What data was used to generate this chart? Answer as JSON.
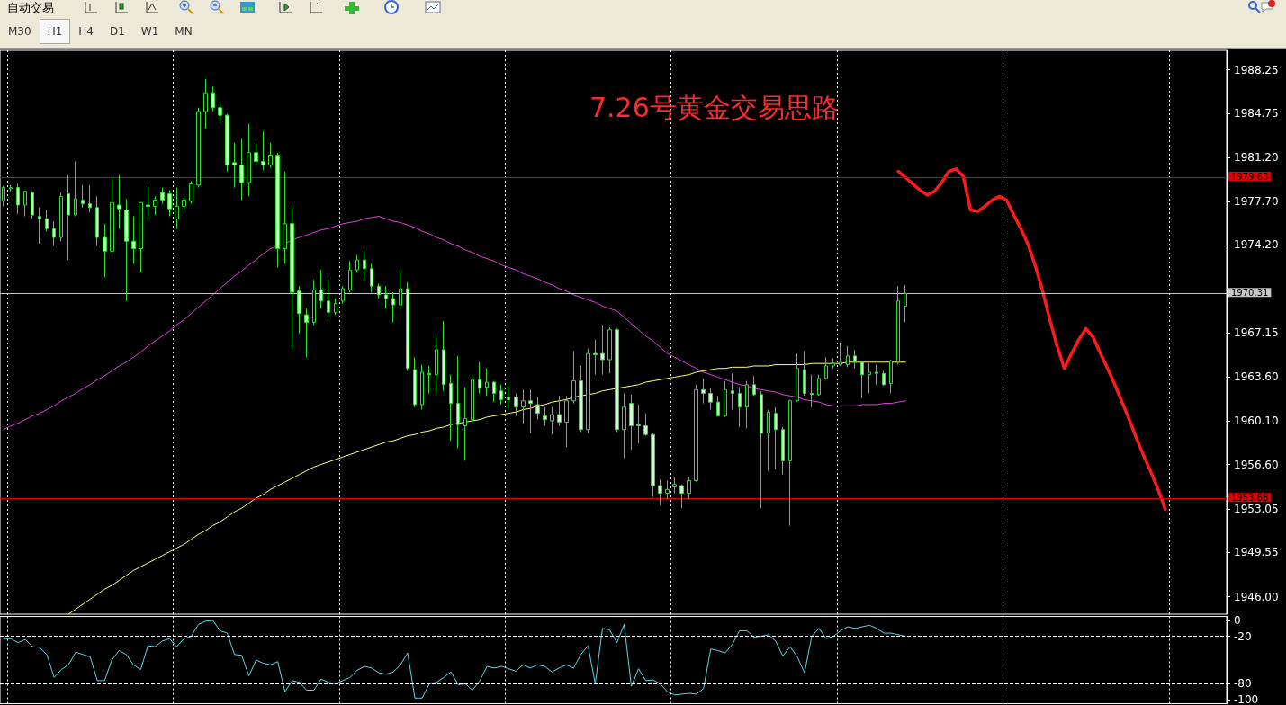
{
  "chart_data": [
    {
      "type": "candlestick",
      "title": "7.26号黄金交易思路",
      "tick_labels": "y",
      "annotations": [
        "自动交易",
        "M30",
        "H1",
        "H4",
        "D1",
        "W1",
        "MN"
      ],
      "categories": [
        null,
        null,
        null,
        null,
        null,
        null,
        null,
        null,
        null,
        null,
        null,
        null,
        null,
        null,
        null,
        null,
        null,
        null,
        null,
        null,
        null,
        null,
        null,
        null,
        null,
        null,
        null,
        null,
        null,
        null,
        null,
        null,
        null,
        null,
        null,
        null,
        null,
        null,
        null,
        null,
        null,
        null,
        null,
        null,
        null,
        null,
        null,
        null,
        null,
        null,
        null,
        null,
        null,
        null,
        null,
        null,
        null,
        null,
        null,
        null,
        null,
        null,
        null,
        null,
        null,
        null,
        null,
        null,
        null,
        null,
        null,
        null,
        null,
        null,
        null,
        null,
        null,
        null,
        null,
        null,
        null,
        null,
        null,
        null,
        null,
        null,
        null,
        null,
        null,
        null,
        null,
        null,
        null,
        null,
        null,
        null,
        null,
        null,
        null,
        null,
        null,
        null,
        null,
        null,
        null,
        null,
        null,
        null,
        null,
        null,
        null,
        null,
        null,
        null,
        null,
        null,
        null,
        null,
        null,
        null,
        null,
        null,
        null,
        null,
        null,
        null,
        null,
        null,
        null,
        null,
        null,
        null,
        null,
        null,
        null,
        null,
        null,
        null,
        null,
        null,
        null,
        null,
        null,
        null,
        null,
        null,
        null,
        null,
        null,
        null,
        null,
        null,
        null,
        null,
        null,
        null,
        null,
        null,
        null,
        null,
        null,
        null,
        null,
        null,
        null,
        null,
        null,
        null,
        null,
        null
      ],
      "ylim": [
        1944.6,
        1989.8
      ],
      "yticks": [
        {
          "value": 1946.0,
          "label": "1946.00"
        },
        {
          "value": 1949.55,
          "label": "1949.55"
        },
        {
          "value": 1953.05,
          "label": "1953.05"
        },
        {
          "value": 1956.6,
          "label": "1956.60"
        },
        {
          "value": 1960.1,
          "label": "1960.10"
        },
        {
          "value": 1963.6,
          "label": "1963.60"
        },
        {
          "value": 1967.15,
          "label": "1967.15"
        },
        {
          "value": 1970.65,
          "label": null
        },
        {
          "value": 1974.2,
          "label": "1974.20"
        },
        {
          "value": 1977.7,
          "label": "1977.70"
        },
        {
          "value": 1981.2,
          "label": "1981.20"
        },
        {
          "value": 1984.75,
          "label": "1984.75"
        },
        {
          "value": 1988.25,
          "label": "1988.25"
        }
      ],
      "ref_lines": [
        {
          "axis": "y",
          "value": 1979.63,
          "label": "1979.63",
          "color": "#e00000"
        },
        {
          "axis": "y",
          "value": 1953.88,
          "label": "1953.88",
          "color": "#e00000"
        },
        {
          "axis": "y",
          "value": 1970.31,
          "label": "1970.31",
          "color": "#c8c8c8"
        }
      ],
      "series": [
        {
          "type": "line",
          "color": "#e040e0",
          "values": [
            1959.4,
            1959.7,
            1959.9,
            1960.2,
            1960.5,
            1960.7,
            1961.0,
            1961.3,
            1961.7,
            1962.0,
            1962.3,
            1962.7,
            1963.0,
            1963.4,
            1963.7,
            1964.1,
            1964.5,
            1964.8,
            1965.2,
            1965.6,
            1966.1,
            1966.5,
            1966.9,
            1967.3,
            1967.8,
            1968.2,
            1968.7,
            1969.2,
            1969.7,
            1970.2,
            1970.7,
            1971.2,
            1971.7,
            1972.1,
            1972.6,
            1973.0,
            1973.5,
            1973.9,
            1974.1,
            1974.3,
            1974.6,
            1974.8,
            1975.0,
            1975.2,
            1975.4,
            1975.5,
            1975.7,
            1975.9,
            1976.0,
            1976.1,
            1976.3,
            1976.4,
            1976.5,
            1976.3,
            1976.1,
            1976.0,
            1975.8,
            1975.6,
            1975.3,
            1975.1,
            1974.8,
            1974.6,
            1974.3,
            1974.1,
            1973.8,
            1973.6,
            1973.3,
            1973.1,
            1972.9,
            1972.6,
            1972.4,
            1972.2,
            1971.9,
            1971.7,
            1971.5,
            1971.2,
            1971.0,
            1970.7,
            1970.5,
            1970.2,
            1970.0,
            1969.8,
            1969.6,
            1969.3,
            1969.1,
            1968.9,
            1968.4,
            1967.9,
            1967.4,
            1966.9,
            1966.5,
            1966.0,
            1965.5,
            1965.2,
            1964.9,
            1964.6,
            1964.3,
            1964.0,
            1963.8,
            1963.6,
            1963.4,
            1963.2,
            1963.0,
            1962.9,
            1962.7,
            1962.6,
            1962.5,
            1962.4,
            1962.2,
            1962.1,
            1962.0,
            1961.8,
            1961.7,
            1961.6,
            1961.4,
            1961.3,
            1961.3,
            1961.3,
            1961.3,
            1961.4,
            1961.4,
            1961.4,
            1961.5,
            1961.5,
            1961.6,
            1961.7,
            null,
            null,
            null,
            null,
            null,
            null,
            null,
            null,
            null,
            null,
            null,
            null,
            null,
            null,
            null,
            null,
            null,
            null,
            null,
            null,
            null,
            null,
            null,
            null,
            null,
            null,
            null,
            null,
            null,
            null,
            null,
            null,
            null,
            null,
            null,
            null,
            null,
            null,
            null,
            null,
            null,
            null,
            null,
            null
          ]
        },
        {
          "type": "line",
          "color": "#ffff80",
          "values": [
            null,
            null,
            null,
            null,
            null,
            null,
            null,
            null,
            null,
            1944.6,
            1945.0,
            1945.4,
            1945.8,
            1946.2,
            1946.6,
            1946.9,
            1947.3,
            1947.7,
            1948.1,
            1948.4,
            1948.7,
            1949.0,
            1949.3,
            1949.6,
            1949.9,
            1950.2,
            1950.6,
            1951.0,
            1951.3,
            1951.7,
            1952.0,
            1952.4,
            1952.8,
            1953.1,
            1953.5,
            1953.9,
            1954.2,
            1954.6,
            1954.9,
            1955.2,
            1955.5,
            1955.8,
            1956.1,
            1956.4,
            1956.6,
            1956.8,
            1957.0,
            1957.2,
            1957.4,
            1957.6,
            1957.8,
            1958.0,
            1958.2,
            1958.4,
            1958.5,
            1958.7,
            1958.9,
            1959.0,
            1959.2,
            1959.3,
            1959.5,
            1959.6,
            1959.8,
            1959.9,
            1960.0,
            1960.1,
            1960.2,
            1960.4,
            1960.5,
            1960.6,
            1960.7,
            1960.8,
            1961.0,
            1961.1,
            1961.3,
            1961.4,
            1961.6,
            1961.7,
            1961.8,
            1962.0,
            1962.1,
            1962.2,
            1962.3,
            1962.5,
            1962.6,
            1962.7,
            1962.8,
            1962.9,
            1963.0,
            1963.2,
            1963.3,
            1963.4,
            1963.5,
            1963.6,
            1963.7,
            1963.8,
            1964.0,
            1964.1,
            1964.2,
            1964.3,
            1964.3,
            1964.4,
            1964.4,
            1964.4,
            1964.5,
            1964.5,
            1964.5,
            1964.6,
            1964.6,
            1964.6,
            1964.6,
            1964.6,
            1964.7,
            1964.7,
            1964.7,
            1964.7,
            1964.7,
            1964.8,
            1964.8,
            1964.8,
            1964.8,
            1964.8,
            1964.8,
            1964.8,
            1964.8,
            1964.8,
            null,
            null,
            null,
            null,
            null,
            null,
            null,
            null,
            null,
            null,
            null,
            null,
            null,
            null,
            null,
            null,
            null,
            null,
            null,
            null,
            null,
            null,
            null,
            null,
            null,
            null,
            null,
            null,
            null,
            null,
            null,
            null,
            null,
            null,
            null,
            null,
            null,
            null,
            null,
            null,
            null,
            null,
            null,
            null
          ]
        },
        {
          "type": "line",
          "color": "#ff1a1a",
          "values": [
            null,
            null,
            null,
            null,
            null,
            null,
            null,
            null,
            null,
            null,
            null,
            null,
            null,
            null,
            null,
            null,
            null,
            null,
            null,
            null,
            null,
            null,
            null,
            null,
            null,
            null,
            null,
            null,
            null,
            null,
            null,
            null,
            null,
            null,
            null,
            null,
            null,
            null,
            null,
            null,
            null,
            null,
            null,
            null,
            null,
            null,
            null,
            null,
            null,
            null,
            null,
            null,
            null,
            null,
            null,
            null,
            null,
            null,
            null,
            null,
            null,
            null,
            null,
            null,
            null,
            null,
            null,
            null,
            null,
            null,
            null,
            null,
            null,
            null,
            null,
            null,
            null,
            null,
            null,
            null,
            null,
            null,
            null,
            null,
            null,
            null,
            null,
            null,
            null,
            null,
            null,
            null,
            null,
            null,
            null,
            null,
            null,
            null,
            null,
            null,
            null,
            null,
            null,
            null,
            null,
            null,
            null,
            null,
            null,
            null,
            null,
            null,
            null,
            null,
            null,
            null,
            null,
            null,
            null,
            null,
            null,
            null,
            null,
            null,
            1980.1,
            1979.6,
            1979.1,
            1978.6,
            1978.2,
            1978.5,
            1979.2,
            1980.1,
            1980.3,
            1979.7,
            1977.0,
            1976.9,
            1977.3,
            1977.8,
            1978.1,
            1977.8,
            1976.6,
            1975.5,
            1974.2,
            1972.5,
            1970.5,
            1968.2,
            1966.1,
            1964.3,
            1965.5,
            1966.6,
            1967.5,
            1966.8,
            1965.5,
            1964.3,
            1963.0,
            1961.6,
            1960.2,
            1958.7,
            1957.3,
            1956.0,
            1954.6,
            1953.0,
            null,
            null,
            null,
            null,
            null,
            null,
            null,
            null
          ]
        },
        {
          "color": "#33dd33",
          "ohlc": [
            [
              1977.7,
              1978.9,
              1977.3,
              1978.8
            ],
            [
              1978.7,
              1979.0,
              1978.5,
              1978.8
            ],
            [
              1978.8,
              1979.1,
              1976.7,
              1977.4
            ],
            [
              1977.4,
              1978.5,
              1976.5,
              1978.5
            ],
            [
              1978.4,
              1978.5,
              1976.3,
              1976.6
            ],
            [
              1976.5,
              1977.2,
              1974.3,
              1976.3
            ],
            [
              1976.3,
              1977.0,
              1975.3,
              1975.5
            ],
            [
              1975.5,
              1976.1,
              1974.1,
              1974.8
            ],
            [
              1974.8,
              1978.4,
              1974.5,
              1978.1
            ],
            [
              1978.3,
              1979.8,
              1973.0,
              1976.6
            ],
            [
              1976.6,
              1980.9,
              1976.5,
              1977.9
            ],
            [
              1977.8,
              1979.0,
              1977.2,
              1977.5
            ],
            [
              1977.5,
              1979.0,
              1976.8,
              1977.2
            ],
            [
              1977.2,
              1978.1,
              1974.1,
              1974.8
            ],
            [
              1974.8,
              1975.9,
              1971.6,
              1973.7
            ],
            [
              1973.7,
              1979.6,
              1973.6,
              1977.6
            ],
            [
              1977.4,
              1979.8,
              1975.5,
              1977.1
            ],
            [
              1977.0,
              1977.9,
              1969.7,
              1974.5
            ],
            [
              1974.5,
              1976.5,
              1972.7,
              1973.9
            ],
            [
              1973.9,
              1977.6,
              1972.0,
              1977.6
            ],
            [
              1977.4,
              1978.9,
              1976.3,
              1977.3
            ],
            [
              1977.3,
              1978.1,
              1976.6,
              1977.8
            ],
            [
              1978.4,
              1978.8,
              1977.5,
              1977.8
            ],
            [
              1978.3,
              1978.6,
              1976.5,
              1977.1
            ],
            [
              1976.3,
              1978.8,
              1975.5,
              1977.3
            ],
            [
              1977.3,
              1978.1,
              1977.0,
              1977.8
            ],
            [
              1977.7,
              1979.3,
              1977.5,
              1979.1
            ],
            [
              1979.0,
              1985.2,
              1978.8,
              1984.9
            ],
            [
              1984.9,
              1987.5,
              1983.5,
              1986.4
            ],
            [
              1986.4,
              1986.9,
              1984.9,
              1985.2
            ],
            [
              1985.2,
              1985.5,
              1984.0,
              1984.6
            ],
            [
              1984.6,
              1984.7,
              1980.1,
              1980.6
            ],
            [
              1980.8,
              1982.4,
              1978.8,
              1980.6
            ],
            [
              1980.6,
              1982.7,
              1977.8,
              1979.2
            ],
            [
              1979.2,
              1983.9,
              1978.1,
              1981.6
            ],
            [
              1981.6,
              1982.4,
              1980.6,
              1980.9
            ],
            [
              1980.9,
              1983.3,
              1980.2,
              1980.6
            ],
            [
              1980.6,
              1982.4,
              1980.4,
              1981.4
            ],
            [
              1981.4,
              1981.6,
              1972.4,
              1973.9
            ],
            [
              1973.9,
              1980.1,
              1972.7,
              1975.9
            ],
            [
              1975.9,
              1977.4,
              1965.8,
              1970.4
            ],
            [
              1970.5,
              1970.9,
              1967.1,
              1968.7
            ],
            [
              1968.6,
              1969.1,
              1965.2,
              1968.0
            ],
            [
              1968.0,
              1971.4,
              1967.8,
              1970.6
            ],
            [
              1970.6,
              1972.2,
              1969.1,
              1969.7
            ],
            [
              1969.7,
              1971.4,
              1968.4,
              1968.8
            ],
            [
              1968.8,
              1969.9,
              1968.6,
              1969.5
            ],
            [
              1969.7,
              1970.9,
              1969.5,
              1970.7
            ],
            [
              1970.6,
              1972.9,
              1970.4,
              1972.2
            ],
            [
              1972.2,
              1973.4,
              1972.0,
              1973.0
            ],
            [
              1973.0,
              1973.7,
              1971.4,
              1972.3
            ],
            [
              1972.3,
              1972.7,
              1970.4,
              1970.9
            ],
            [
              1970.9,
              1971.1,
              1969.9,
              1970.2
            ],
            [
              1970.2,
              1970.9,
              1969.1,
              1969.9
            ],
            [
              1969.9,
              1970.4,
              1968.0,
              1969.4
            ],
            [
              1969.4,
              1972.2,
              1969.1,
              1970.7
            ],
            [
              1970.7,
              1971.2,
              1964.1,
              1964.3
            ],
            [
              1964.2,
              1965.2,
              1961.2,
              1961.4
            ],
            [
              1961.4,
              1964.6,
              1961.0,
              1964.0
            ],
            [
              1963.9,
              1964.5,
              1962.3,
              1963.8
            ],
            [
              1963.8,
              1966.9,
              1962.3,
              1965.8
            ],
            [
              1965.8,
              1968.1,
              1962.5,
              1963.0
            ],
            [
              1963.1,
              1963.8,
              1958.5,
              1961.5
            ],
            [
              1961.5,
              1965.3,
              1957.9,
              1959.8
            ],
            [
              1959.7,
              1962.8,
              1956.9,
              1960.3
            ],
            [
              1960.2,
              1963.8,
              1960.0,
              1963.4
            ],
            [
              1963.4,
              1964.8,
              1962.3,
              1962.7
            ],
            [
              1962.8,
              1964.3,
              1962.1,
              1963.2
            ],
            [
              1963.2,
              1963.3,
              1961.6,
              1962.3
            ],
            [
              1962.5,
              1963.0,
              1961.4,
              1961.8
            ],
            [
              1962.0,
              1963.0,
              1961.0,
              1961.8
            ],
            [
              1962.0,
              1962.3,
              1960.5,
              1961.2
            ],
            [
              1961.2,
              1962.6,
              1959.9,
              1961.7
            ],
            [
              1961.7,
              1962.6,
              1959.1,
              1961.5
            ],
            [
              1961.4,
              1962.0,
              1960.2,
              1960.7
            ],
            [
              1960.5,
              1961.2,
              1959.7,
              1960.2
            ],
            [
              1960.1,
              1961.2,
              1959.0,
              1960.6
            ],
            [
              1960.6,
              1962.1,
              1959.7,
              1960.0
            ],
            [
              1960.0,
              1962.1,
              1958.0,
              1961.7
            ],
            [
              1961.7,
              1965.7,
              1961.5,
              1963.3
            ],
            [
              1963.3,
              1964.5,
              1959.2,
              1959.4
            ],
            [
              1959.4,
              1965.9,
              1959.1,
              1965.5
            ],
            [
              1965.5,
              1966.6,
              1963.8,
              1965.4
            ],
            [
              1965.5,
              1967.8,
              1963.8,
              1965.0
            ],
            [
              1965.0,
              1967.6,
              1963.9,
              1967.4
            ],
            [
              1967.4,
              1967.5,
              1959.2,
              1959.4
            ],
            [
              1959.4,
              1962.3,
              1957.1,
              1961.2
            ],
            [
              1961.5,
              1962.2,
              1957.8,
              1959.7
            ],
            [
              1959.8,
              1961.4,
              1958.3,
              1959.7
            ],
            [
              1959.7,
              1960.7,
              1958.9,
              1959.0
            ],
            [
              1959.0,
              1959.1,
              1954.0,
              1954.9
            ],
            [
              1954.9,
              1955.4,
              1953.3,
              1954.3
            ],
            [
              1954.3,
              1955.3,
              1953.8,
              1954.6
            ],
            [
              1954.8,
              1955.6,
              1954.3,
              1955.0
            ],
            [
              1954.9,
              1955.0,
              1953.1,
              1954.3
            ],
            [
              1954.3,
              1955.6,
              1953.8,
              1955.3
            ],
            [
              1955.3,
              1963.0,
              1955.2,
              1962.6
            ],
            [
              1962.6,
              1963.5,
              1961.5,
              1962.3
            ],
            [
              1962.3,
              1962.7,
              1961.0,
              1961.6
            ],
            [
              1961.6,
              1962.1,
              1960.5,
              1960.5
            ],
            [
              1960.5,
              1963.3,
              1960.4,
              1962.6
            ],
            [
              1962.5,
              1963.9,
              1961.0,
              1962.3
            ],
            [
              1962.3,
              1962.8,
              1959.6,
              1961.2
            ],
            [
              1961.2,
              1963.3,
              1959.5,
              1963.0
            ],
            [
              1963.0,
              1963.7,
              1962.1,
              1962.2
            ],
            [
              1962.2,
              1962.5,
              1953.1,
              1959.1
            ],
            [
              1959.1,
              1961.0,
              1956.1,
              1960.8
            ],
            [
              1960.7,
              1961.2,
              1956.2,
              1959.4
            ],
            [
              1959.4,
              1959.6,
              1955.8,
              1956.9
            ],
            [
              1956.9,
              1961.8,
              1951.7,
              1961.7
            ],
            [
              1961.7,
              1965.5,
              1961.6,
              1964.3
            ],
            [
              1964.2,
              1965.7,
              1962.1,
              1962.3
            ],
            [
              1962.3,
              1963.8,
              1961.2,
              1962.2
            ],
            [
              1962.2,
              1963.8,
              1962.1,
              1963.5
            ],
            [
              1963.5,
              1965.2,
              1963.4,
              1964.5
            ],
            [
              1964.5,
              1965.1,
              1964.3,
              1964.7
            ],
            [
              1964.6,
              1966.4,
              1964.5,
              1964.8
            ],
            [
              1964.6,
              1966.1,
              1964.4,
              1965.3
            ],
            [
              1965.3,
              1965.8,
              1964.3,
              1964.8
            ],
            [
              1964.8,
              1964.9,
              1961.9,
              1963.8
            ],
            [
              1963.8,
              1964.7,
              1962.3,
              1964.0
            ],
            [
              1964.0,
              1964.6,
              1963.0,
              1963.9
            ],
            [
              1963.9,
              1964.1,
              1962.9,
              1963.0
            ],
            [
              1963.1,
              1965.0,
              1962.3,
              1964.9
            ],
            [
              1964.9,
              1970.9,
              1964.6,
              1969.7
            ],
            [
              1969.3,
              1971.0,
              1968.0,
              1970.3
            ],
            null,
            null,
            null,
            null,
            null,
            null,
            null,
            null,
            null,
            null,
            null,
            null,
            null,
            null,
            null,
            null,
            null,
            null,
            null,
            null,
            null,
            null,
            null,
            null,
            null,
            null,
            null,
            null,
            null,
            null,
            null,
            null,
            null,
            null,
            null,
            null,
            null,
            null,
            null,
            null,
            null,
            null,
            null,
            null
          ]
        }
      ]
    },
    {
      "type": "line",
      "tick_labels": "y",
      "categories": [
        null,
        null,
        null,
        null,
        null,
        null,
        null,
        null,
        null,
        null,
        null,
        null,
        null,
        null,
        null,
        null,
        null,
        null,
        null,
        null,
        null,
        null,
        null,
        null,
        null,
        null,
        null,
        null,
        null,
        null,
        null,
        null,
        null,
        null,
        null,
        null,
        null,
        null,
        null,
        null,
        null,
        null,
        null,
        null,
        null,
        null,
        null,
        null,
        null,
        null,
        null,
        null,
        null,
        null,
        null,
        null,
        null,
        null,
        null,
        null,
        null,
        null,
        null,
        null,
        null,
        null,
        null,
        null,
        null,
        null,
        null,
        null,
        null,
        null,
        null,
        null,
        null,
        null,
        null,
        null,
        null,
        null,
        null,
        null,
        null,
        null,
        null,
        null,
        null,
        null,
        null,
        null,
        null,
        null,
        null,
        null,
        null,
        null,
        null,
        null,
        null,
        null,
        null,
        null,
        null,
        null,
        null,
        null,
        null,
        null,
        null,
        null,
        null,
        null,
        null,
        null,
        null,
        null,
        null,
        null,
        null,
        null,
        null,
        null,
        null,
        null,
        null,
        null,
        null,
        null,
        null,
        null,
        null,
        null,
        null,
        null,
        null,
        null,
        null,
        null,
        null,
        null,
        null,
        null,
        null,
        null,
        null,
        null,
        null,
        null,
        null,
        null,
        null,
        null,
        null,
        null,
        null,
        null,
        null,
        null,
        null,
        null,
        null,
        null,
        null,
        null,
        null,
        null,
        null,
        null
      ],
      "ylim": [
        -105,
        5
      ],
      "yticks": [
        0,
        -20,
        -80,
        -100
      ],
      "ref_lines": [
        {
          "axis": "y",
          "value": -20,
          "color": "#ffffff",
          "line_style": "dashed"
        },
        {
          "axis": "y",
          "value": -80,
          "color": "#ffffff",
          "line_style": "dashed"
        }
      ],
      "series": [
        {
          "color": "#5fd8e8",
          "values": [
            -23,
            -23,
            -28,
            -24,
            -33,
            -34,
            -43,
            -72,
            -62,
            -56,
            -40,
            -43,
            -46,
            -76,
            -76,
            -50,
            -38,
            -43,
            -56,
            -62,
            -32,
            -33,
            -26,
            -23,
            -33,
            -23,
            -20,
            -5,
            -1,
            0,
            -13,
            -16,
            -43,
            -44,
            -70,
            -50,
            -54,
            -56,
            -52,
            -90,
            -76,
            -78,
            -88,
            -88,
            -74,
            -78,
            -80,
            -76,
            -72,
            -63,
            -58,
            -60,
            -66,
            -68,
            -65,
            -56,
            -41,
            -98,
            -98,
            -80,
            -78,
            -72,
            -65,
            -81,
            -80,
            -88,
            -76,
            -58,
            -60,
            -58,
            -61,
            -64,
            -56,
            -60,
            -56,
            -58,
            -65,
            -60,
            -56,
            -60,
            -43,
            -32,
            -80,
            -10,
            -12,
            -28,
            -5,
            -83,
            -61,
            -76,
            -75,
            -80,
            -90,
            -94,
            -93,
            -92,
            -93,
            -86,
            -36,
            -38,
            -41,
            -30,
            -13,
            -13,
            -21,
            -20,
            -18,
            -26,
            -45,
            -33,
            -46,
            -66,
            -20,
            -10,
            -23,
            -20,
            -13,
            -8,
            -10,
            -8,
            -6,
            -10,
            -16,
            -16,
            -18,
            -20,
            null,
            null,
            null,
            null,
            null,
            null,
            null,
            null,
            null,
            null,
            null,
            null,
            null,
            null,
            null,
            null,
            null,
            null,
            null,
            null,
            null,
            null,
            null,
            null,
            null,
            null,
            null,
            null,
            null,
            null,
            null,
            null,
            null,
            null,
            null,
            null,
            null,
            null,
            null,
            null,
            null,
            null,
            null,
            null
          ]
        }
      ]
    }
  ]
}
